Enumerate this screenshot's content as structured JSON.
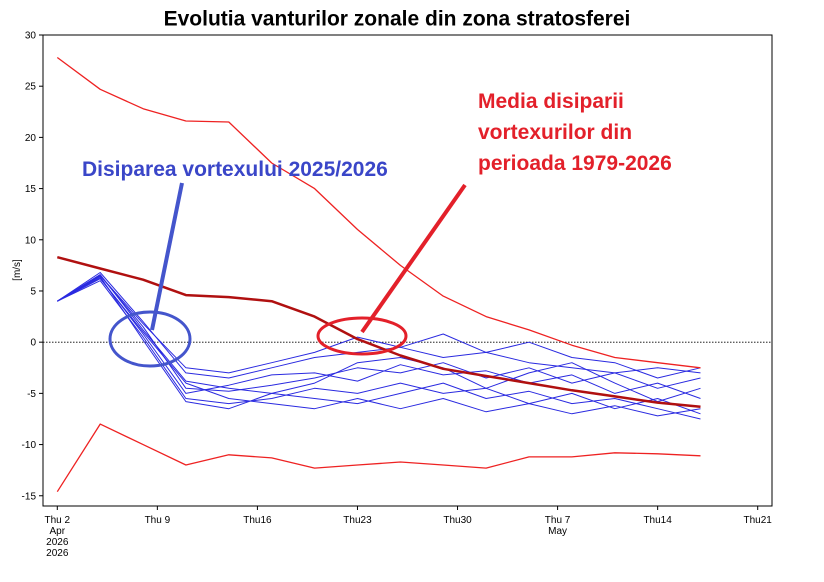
{
  "chart_data": {
    "type": "line",
    "title": "Evolutia vanturilor zonale din zona stratosferei",
    "y_label": "[m/s]",
    "xlim": [
      -1,
      50
    ],
    "ylim": [
      -16,
      30
    ],
    "xticks": [
      {
        "value": 0,
        "label": "Thu 2\nApr\n2026\n2026"
      },
      {
        "value": 7,
        "label": "Thu 9"
      },
      {
        "value": 14,
        "label": "Thu16"
      },
      {
        "value": 21,
        "label": "Thu23"
      },
      {
        "value": 28,
        "label": "Thu30"
      },
      {
        "value": 35,
        "label": "Thu 7\nMay"
      },
      {
        "value": 42,
        "label": "Thu14"
      },
      {
        "value": 49,
        "label": "Thu21"
      }
    ],
    "yticks": [
      -15,
      -10,
      -5,
      0,
      5,
      10,
      15,
      20,
      25,
      30
    ],
    "zero_line": true,
    "x": [
      0,
      3,
      6,
      9,
      12,
      15,
      18,
      21,
      24,
      27,
      30,
      33,
      36,
      39,
      42,
      45
    ],
    "series": [
      {
        "color": "#2a2ae0",
        "width": 1,
        "values": [
          4,
          6.5,
          1.5,
          -4.5,
          -4.8,
          -4.2,
          -3.5,
          -2.5,
          -3,
          -2,
          -3.5,
          -2.5,
          -4,
          -3,
          -4.5,
          -3.5
        ]
      },
      {
        "color": "#2a2ae0",
        "width": 1,
        "values": [
          4,
          6,
          0.5,
          -5.5,
          -6,
          -5.5,
          -4.5,
          -5,
          -4,
          -5,
          -4.5,
          -6,
          -5,
          -6.5,
          -5.5,
          -7
        ]
      },
      {
        "color": "#2a2ae0",
        "width": 1,
        "values": [
          4,
          6.8,
          2,
          -3,
          -3.5,
          -2.5,
          -1.5,
          -1,
          -0.5,
          -1.5,
          -1,
          -2,
          -2.5,
          -3,
          -2.5,
          -3
        ]
      },
      {
        "color": "#2a2ae0",
        "width": 1,
        "values": [
          4,
          6.2,
          1,
          -4,
          -5.5,
          -6,
          -6.5,
          -5.5,
          -6.5,
          -5.5,
          -6.8,
          -6,
          -7,
          -6.2,
          -7.2,
          -6.5
        ]
      },
      {
        "color": "#2a2ae0",
        "width": 1,
        "values": [
          4,
          6.5,
          1.8,
          -2.5,
          -3,
          -2,
          -1,
          0.5,
          -0.5,
          0.8,
          -1,
          0,
          -1.5,
          -2,
          -3.5,
          -2.5
        ]
      },
      {
        "color": "#2a2ae0",
        "width": 1,
        "values": [
          4,
          6.3,
          0.8,
          -5,
          -4.2,
          -3.2,
          -3,
          -3.8,
          -2.2,
          -3.2,
          -2.8,
          -4,
          -3.2,
          -5,
          -4,
          -5.5
        ]
      },
      {
        "color": "#2a2ae0",
        "width": 1,
        "values": [
          4,
          6.6,
          1.2,
          -3.8,
          -4.5,
          -5,
          -4,
          -2,
          -1.5,
          -2.5,
          -4.5,
          -3,
          -2,
          -4,
          -5.8,
          -4.5
        ]
      },
      {
        "color": "#2a2ae0",
        "width": 1,
        "values": [
          4,
          6.4,
          0.2,
          -5.8,
          -6.5,
          -5,
          -5.5,
          -6,
          -5,
          -4,
          -5.5,
          -4.8,
          -6,
          -5.5,
          -6.5,
          -7.5
        ]
      },
      {
        "color": "#ee2222",
        "width": 1.3,
        "values": [
          27.8,
          24.7,
          22.8,
          21.6,
          21.5,
          17.5,
          15,
          11,
          7.5,
          4.5,
          2.5,
          1.2,
          -0.3,
          -1.5,
          -2,
          -2.5
        ]
      },
      {
        "color": "#ee2222",
        "width": 1.3,
        "values": [
          -14.6,
          -8,
          -10,
          -12,
          -11,
          -11.3,
          -12.3,
          -12,
          -11.7,
          -12,
          -12.3,
          -11.2,
          -11.2,
          -10.8,
          -10.9,
          -11.1
        ]
      },
      {
        "color": "#b01010",
        "width": 2.5,
        "values": [
          8.3,
          7.2,
          6.1,
          4.6,
          4.4,
          4,
          2.5,
          0.3,
          -1.3,
          -2.6,
          -3.3,
          -4,
          -4.7,
          -5.3,
          -5.9,
          -6.3
        ]
      }
    ],
    "annotations": [
      {
        "text": "Disiparea vortexului 2025/2026",
        "color": "#3a46c8"
      },
      {
        "text": "Media disiparii\nvortexurilor din\nperioada  1979-2026",
        "color": "#e3202a"
      }
    ]
  }
}
